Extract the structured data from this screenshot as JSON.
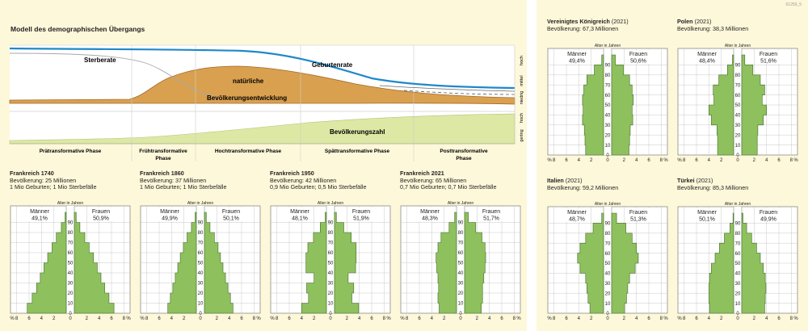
{
  "code_id": "01259_5",
  "model": {
    "title": "Modell des demographischen Übergangs",
    "curve_labels": {
      "deathrate": "Sterberate",
      "birthrate": "Geburtenrate",
      "growth_line1": "natürliche",
      "growth_line2": "Bevölkerungsentwicklung",
      "population": "Bevölkerungszahl"
    },
    "axis_levels_top": [
      "hoch",
      "mittel",
      "niedrig"
    ],
    "axis_levels_bottom": [
      "hoch",
      "gering"
    ],
    "phases": [
      {
        "line1": "Prätransformative Phase",
        "line2": ""
      },
      {
        "line1": "Frühtransformative",
        "line2": "Phase"
      },
      {
        "line1": "Hochtransformative Phase",
        "line2": ""
      },
      {
        "line1": "Spättransformative Phase",
        "line2": ""
      },
      {
        "line1": "Posttransformative",
        "line2": "Phase"
      }
    ]
  },
  "pyramid_labels": {
    "men": "Männer",
    "women": "Frauen",
    "age_axis": "Alter in Jahren",
    "age_ticks": [
      "0",
      "10",
      "20",
      "30",
      "40",
      "50",
      "60",
      "70",
      "80",
      "90"
    ],
    "x_ticks": [
      "%",
      "8",
      "6",
      "4",
      "2",
      "0",
      "2",
      "4",
      "6",
      "8",
      "%"
    ]
  },
  "colors": {
    "background": "#fdf8da",
    "death_fill": "#d9a04f",
    "death_edge": "#a26a2c",
    "birth_line": "#1f88c9",
    "population_fill": "#dde8a4",
    "pyramid_fill": "#8fc05e",
    "pyramid_edge": "#3f6d27"
  },
  "pyramids": [
    {
      "title": "Frankreich 1740",
      "year": "",
      "line1": "Bevölkerung: 25 Millionen",
      "line2": "1 Mio Geburten; 1 Mio Sterbefälle",
      "men_pct": "49,1%",
      "women_pct": "50,9%",
      "male": [
        6.3,
        5.5,
        4.8,
        4.2,
        3.6,
        3.0,
        2.3,
        1.6,
        0.8,
        0.2
      ],
      "female": [
        6.4,
        5.6,
        4.9,
        4.3,
        3.7,
        3.1,
        2.4,
        1.7,
        0.9,
        0.3
      ]
    },
    {
      "title": "Frankreich 1860",
      "year": "",
      "line1": "Bevölkerung: 37 Millionen",
      "line2": "1 Mio Geburten; 1 Mio Sterbefälle",
      "men_pct": "49,9%",
      "women_pct": "50,1%",
      "male": [
        4.6,
        4.2,
        3.8,
        3.4,
        3.0,
        2.6,
        2.1,
        1.5,
        0.8,
        0.2
      ],
      "female": [
        4.6,
        4.2,
        3.8,
        3.4,
        3.0,
        2.6,
        2.2,
        1.6,
        0.9,
        0.3
      ]
    },
    {
      "title": "Frankreich 1950",
      "year": "",
      "line1": "Bevölkerung: 42 Millionen",
      "line2": "0,9 Mio Geburten; 0,5 Mio Sterbefälle",
      "men_pct": "48,1%",
      "women_pct": "51,9%",
      "male": [
        4.0,
        2.9,
        3.2,
        2.0,
        3.3,
        3.3,
        3.0,
        2.1,
        1.0,
        0.2
      ],
      "female": [
        3.9,
        2.8,
        3.1,
        2.2,
        3.4,
        3.5,
        3.5,
        2.7,
        1.5,
        0.3
      ]
    },
    {
      "title": "Frankreich 2021",
      "year": "",
      "line1": "Bevölkerung: 65 Millionen",
      "line2": "0,7 Mio Geburten; 0,7 Mio Sterbefälle",
      "men_pct": "48,3%",
      "women_pct": "51,7%",
      "male": [
        2.8,
        3.0,
        2.9,
        3.0,
        3.2,
        3.3,
        3.0,
        2.5,
        1.2,
        0.3
      ],
      "female": [
        2.7,
        2.9,
        2.9,
        3.1,
        3.3,
        3.4,
        3.3,
        2.8,
        1.8,
        0.6
      ]
    },
    {
      "title": "Vereinigtes Königreich",
      "year": "(2021)",
      "line1": "Bevölkerung: 67,3 Millionen",
      "line2": "",
      "men_pct": "49,4%",
      "women_pct": "50,6%",
      "male": [
        2.9,
        3.0,
        3.1,
        3.4,
        3.3,
        3.4,
        3.2,
        2.7,
        1.5,
        0.3
      ],
      "female": [
        2.8,
        2.9,
        3.0,
        3.4,
        3.3,
        3.5,
        3.3,
        2.9,
        1.9,
        0.6
      ]
    },
    {
      "title": "Polen",
      "year": "(2021)",
      "line1": "Bevölkerung: 38,3 Millionen",
      "line2": "",
      "men_pct": "48,4%",
      "women_pct": "51,6%",
      "male": [
        2.6,
        2.6,
        2.7,
        3.6,
        4.0,
        3.2,
        3.3,
        2.4,
        1.0,
        0.2
      ],
      "female": [
        2.5,
        2.5,
        2.6,
        3.5,
        4.0,
        3.3,
        3.7,
        3.0,
        1.8,
        0.5
      ]
    },
    {
      "title": "Italien",
      "year": "(2021)",
      "line1": "Bevölkerung: 59,2 Millionen",
      "line2": "",
      "men_pct": "48,7%",
      "women_pct": "51,3%",
      "male": [
        2.2,
        2.5,
        2.7,
        2.9,
        3.8,
        4.2,
        3.8,
        2.9,
        1.7,
        0.3
      ],
      "female": [
        2.1,
        2.4,
        2.6,
        2.9,
        3.8,
        4.3,
        4.0,
        3.3,
        2.3,
        0.8
      ]
    },
    {
      "title": "Türkei",
      "year": "(2021)",
      "line1": "Bevölkerung: 85,3 Millionen",
      "line2": "",
      "men_pct": "50,1%",
      "women_pct": "49,9%",
      "male": [
        3.9,
        4.0,
        4.0,
        3.9,
        3.6,
        3.0,
        2.3,
        1.5,
        0.6,
        0.1
      ],
      "female": [
        3.7,
        3.8,
        3.9,
        3.8,
        3.5,
        3.0,
        2.4,
        1.6,
        0.8,
        0.2
      ]
    }
  ]
}
